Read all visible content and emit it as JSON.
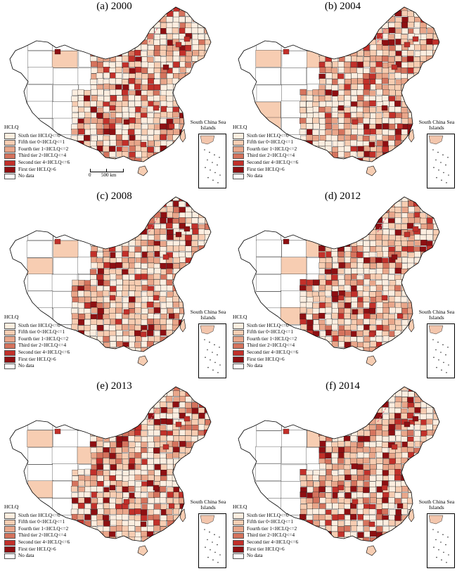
{
  "panels": [
    {
      "title": "(a) 2000",
      "intensity": 0.3
    },
    {
      "title": "(b) 2004",
      "intensity": 0.42
    },
    {
      "title": "(c) 2008",
      "intensity": 0.48
    },
    {
      "title": "(d) 2012",
      "intensity": 0.46
    },
    {
      "title": "(e) 2013",
      "intensity": 0.5
    },
    {
      "title": "(f) 2014",
      "intensity": 0.52
    }
  ],
  "legend": {
    "title": "HCLQ",
    "items": [
      {
        "label": "Sixth tier HCLQ<=0",
        "color": "#fdeee0"
      },
      {
        "label": "Fifth tier 0<HCLQ<=1",
        "color": "#f7cdb2"
      },
      {
        "label": "Fourth tier 1<HCLQ<=2",
        "color": "#e9a68a"
      },
      {
        "label": "Third tier 2<HCLQ<=4",
        "color": "#d5735d"
      },
      {
        "label": "Second tier 4<HCLQ<=6",
        "color": "#c2302a"
      },
      {
        "label": "First tier HCLQ>6",
        "color": "#8e0f12"
      },
      {
        "label": "No data",
        "color": "#ffffff"
      }
    ]
  },
  "inset": {
    "label": "South China Sea Islands"
  },
  "scalebar": {
    "zero": "0",
    "distance": "500 km"
  }
}
